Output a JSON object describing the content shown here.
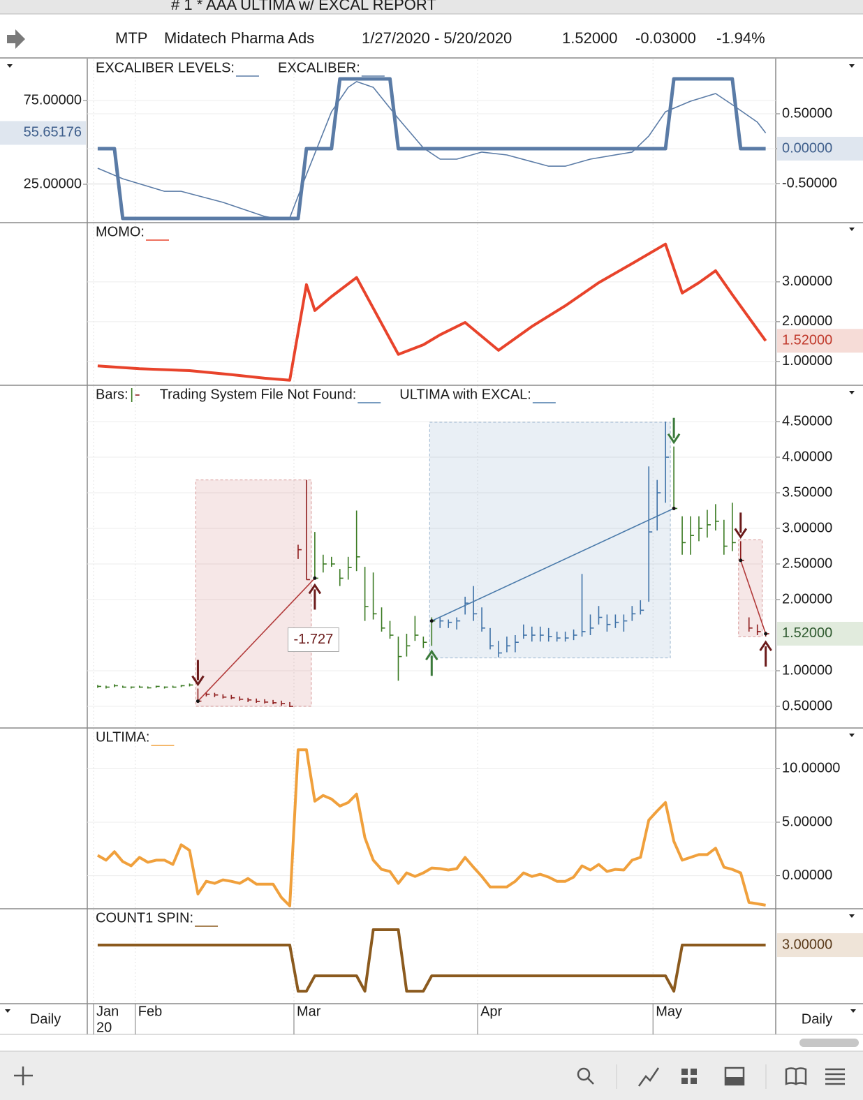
{
  "window_title": "# 1 * AAA ULTIMA w/ EXCAL REPORT",
  "header": {
    "symbol": "MTP",
    "name": "Midatech Pharma Ads",
    "range": "1/27/2020 - 5/20/2020",
    "last": "1.52000",
    "change": "-0.03000",
    "change_pct": "-1.94%"
  },
  "periodicity_left": "Daily",
  "periodicity_right": "Daily",
  "x_axis": {
    "xlim": [
      -1.25,
      81.2
    ],
    "year": "20",
    "xticks": [
      {
        "value": -0.5,
        "label": "Jan"
      },
      {
        "value": 4.5,
        "label": "Feb"
      },
      {
        "value": 23.5,
        "label": "Mar"
      },
      {
        "value": 45.5,
        "label": "Apr"
      },
      {
        "value": 66.5,
        "label": "May"
      }
    ]
  },
  "chart_data": [
    {
      "type": "line",
      "grid": true,
      "ylim": [
        2.5,
        99.6
      ],
      "yticks": [
        {
          "value": 75,
          "label": "75.00000"
        },
        {
          "value": 25,
          "label": "25.00000"
        }
      ],
      "y2lim": [
        -1.05,
        1.28
      ],
      "y2ticks": [
        {
          "value": 0.5,
          "label": "0.50000"
        },
        {
          "value": 0,
          "label": "0.00000"
        },
        {
          "value": -0.5,
          "label": "-0.50000"
        }
      ],
      "series": [
        {
          "name": "EXCALIBER LEVELS:",
          "color": "#5a7ba6",
          "width": 1.6,
          "axis": "y",
          "x": [
            0,
            3,
            8,
            10,
            15,
            20,
            21,
            23,
            25,
            28,
            30,
            31,
            33,
            36,
            39,
            41,
            43,
            46,
            49,
            54,
            56,
            59,
            64,
            66,
            68,
            71,
            74,
            76,
            79,
            80
          ],
          "values": [
            34.6,
            28.3,
            20.8,
            20.8,
            14.2,
            5.8,
            5,
            5,
            30.8,
            68.3,
            82.9,
            86.3,
            82.9,
            64.2,
            46.7,
            40,
            40,
            44.2,
            42.5,
            35.8,
            35.8,
            40,
            44.2,
            53.8,
            68.3,
            74.6,
            79.2,
            72.5,
            62.1,
            55.65176
          ]
        },
        {
          "name": "EXCALIBER:",
          "color": "#5a7ba6",
          "width": 5,
          "axis": "y2",
          "x": [
            0,
            2,
            3,
            24,
            25,
            28,
            29,
            35,
            36,
            68,
            69,
            76,
            77,
            80
          ],
          "values": [
            0,
            0,
            -1,
            -1,
            0,
            0,
            1,
            1,
            0,
            0,
            1,
            1,
            0,
            0
          ]
        }
      ],
      "last_labels": [
        {
          "axis": "y",
          "value": 55.65176,
          "label": "55.65176",
          "color": "#dfe6ef",
          "text_color": "#3f5f8c"
        },
        {
          "axis": "y2",
          "value": 0,
          "label": "0.00000",
          "color": "#dfe6ef",
          "text_color": "#3f5f8c"
        }
      ]
    },
    {
      "type": "line",
      "grid": true,
      "y2lim": [
        0.42,
        4.47
      ],
      "y2ticks": [
        {
          "value": 3,
          "label": "3.00000"
        },
        {
          "value": 2,
          "label": "2.00000"
        },
        {
          "value": 1,
          "label": "1.00000"
        }
      ],
      "series": [
        {
          "name": "MOMO:",
          "color": "#e8432b",
          "width": 4,
          "axis": "y2",
          "x": [
            0,
            5,
            11,
            16,
            20,
            23,
            25,
            26,
            28,
            31,
            36,
            39,
            41,
            44,
            48,
            52,
            56,
            60,
            64,
            68,
            70,
            72,
            74,
            76,
            80
          ],
          "values": [
            0.89,
            0.82,
            0.77,
            0.67,
            0.58,
            0.53,
            2.93,
            2.28,
            2.63,
            3.11,
            1.18,
            1.42,
            1.67,
            1.98,
            1.28,
            1.88,
            2.4,
            2.98,
            3.46,
            3.95,
            2.72,
            2.98,
            3.28,
            2.68,
            1.52
          ]
        }
      ],
      "last_labels": [
        {
          "axis": "y2",
          "value": 1.52,
          "label": "1.52000",
          "color": "#f6dcd7",
          "text_color": "#c0392b"
        }
      ]
    },
    {
      "type": "ohlc",
      "grid": true,
      "y2lim": [
        0.206,
        5.0
      ],
      "y2ticks": [
        {
          "value": 4.5,
          "label": "4.50000"
        },
        {
          "value": 4,
          "label": "4.00000"
        },
        {
          "value": 3.5,
          "label": "3.50000"
        },
        {
          "value": 3,
          "label": "3.00000"
        },
        {
          "value": 2.5,
          "label": "2.50000"
        },
        {
          "value": 2,
          "label": "2.00000"
        },
        {
          "value": 1,
          "label": "1.00000"
        },
        {
          "value": 0.5,
          "label": "0.50000"
        }
      ],
      "legend": [
        {
          "name": "Bars:"
        },
        {
          "name": "Trading System File Not Found:",
          "color": "#4a7aaa"
        },
        {
          "name": "ULTIMA with EXCAL:",
          "color": "#4a7aaa"
        }
      ],
      "series": [
        {
          "color": "#3a7a22",
          "x": [
            0,
            1,
            2,
            3,
            4,
            5,
            6,
            7,
            8,
            9,
            10,
            11
          ],
          "high": [
            0.8,
            0.79,
            0.81,
            0.79,
            0.78,
            0.79,
            0.78,
            0.79,
            0.78,
            0.79,
            0.8,
            0.82
          ],
          "low": [
            0.76,
            0.75,
            0.77,
            0.76,
            0.75,
            0.76,
            0.75,
            0.76,
            0.75,
            0.76,
            0.77,
            0.78
          ],
          "close": [
            0.78,
            0.77,
            0.79,
            0.77,
            0.77,
            0.77,
            0.76,
            0.78,
            0.77,
            0.77,
            0.79,
            0.8
          ]
        },
        {
          "color": "#8e1c1c",
          "x": [
            12,
            13,
            14,
            15,
            16,
            17,
            18,
            19,
            20,
            21,
            22,
            23,
            24,
            25
          ],
          "high": [
            0.75,
            0.7,
            0.69,
            0.67,
            0.66,
            0.64,
            0.62,
            0.61,
            0.6,
            0.59,
            0.58,
            0.56,
            2.77,
            3.68
          ],
          "low": [
            0.57,
            0.64,
            0.63,
            0.61,
            0.6,
            0.58,
            0.56,
            0.55,
            0.54,
            0.53,
            0.51,
            0.49,
            2.57,
            2.28
          ],
          "close": [
            0.573,
            0.67,
            0.66,
            0.63,
            0.62,
            0.6,
            0.59,
            0.57,
            0.56,
            0.55,
            0.54,
            0.5,
            2.7,
            2.28
          ]
        },
        {
          "color": "#3a7a22",
          "x": [
            26,
            27,
            28,
            29,
            30,
            31,
            32,
            33,
            34,
            35,
            36,
            37,
            38,
            39,
            40
          ],
          "high": [
            2.95,
            2.63,
            2.6,
            2.43,
            2.6,
            3.25,
            2.46,
            2.38,
            1.89,
            1.7,
            1.48,
            1.52,
            1.77,
            1.48,
            1.75
          ],
          "low": [
            2.28,
            2.38,
            2.46,
            2.19,
            2.28,
            2.4,
            1.7,
            1.72,
            1.55,
            1.45,
            0.86,
            1.2,
            1.42,
            1.32,
            1.35
          ],
          "close": [
            2.3,
            2.5,
            2.5,
            2.3,
            2.45,
            2.6,
            1.9,
            1.8,
            1.6,
            1.5,
            1.2,
            1.35,
            1.5,
            1.4,
            1.7
          ]
        },
        {
          "color": "#3f72a8",
          "x": [
            41,
            42,
            43,
            44,
            45,
            46,
            47,
            48,
            49,
            50,
            51,
            52,
            53,
            54,
            55,
            56,
            57,
            58,
            59,
            60,
            61,
            62,
            63,
            64,
            65,
            66,
            67,
            68
          ],
          "high": [
            1.75,
            1.72,
            1.75,
            2.04,
            2.19,
            1.89,
            1.6,
            1.42,
            1.48,
            1.5,
            1.65,
            1.62,
            1.62,
            1.6,
            1.55,
            1.55,
            1.58,
            2.36,
            1.79,
            1.91,
            1.79,
            1.79,
            1.79,
            1.91,
            1.99,
            3.87,
            3.68,
            4.5
          ],
          "low": [
            1.6,
            1.6,
            1.58,
            1.79,
            1.7,
            1.55,
            1.3,
            1.19,
            1.26,
            1.26,
            1.45,
            1.41,
            1.41,
            1.41,
            1.41,
            1.41,
            1.43,
            1.48,
            1.5,
            1.65,
            1.55,
            1.6,
            1.55,
            1.7,
            1.79,
            1.97,
            2.97,
            3.36
          ],
          "close": [
            1.7,
            1.68,
            1.7,
            1.95,
            1.8,
            1.6,
            1.35,
            1.25,
            1.35,
            1.4,
            1.5,
            1.5,
            1.5,
            1.48,
            1.46,
            1.46,
            1.5,
            1.55,
            1.6,
            1.75,
            1.65,
            1.68,
            1.7,
            1.8,
            1.85,
            2.95,
            3.5,
            4.0
          ]
        },
        {
          "color": "#3a7a22",
          "x": [
            69,
            70,
            71,
            72,
            73,
            74,
            75,
            76
          ],
          "high": [
            4.15,
            3.17,
            3.17,
            3.17,
            3.26,
            3.34,
            3.12,
            3.36
          ],
          "low": [
            3.26,
            2.63,
            2.63,
            2.82,
            2.87,
            2.97,
            2.63,
            2.68
          ],
          "close": [
            3.28,
            2.8,
            2.9,
            3.0,
            3.05,
            3.1,
            2.75,
            2.8
          ]
        },
        {
          "color": "#8e1c1c",
          "x": [
            77,
            78,
            79,
            80
          ],
          "high": [
            2.82,
            1.75,
            1.65,
            1.55
          ],
          "low": [
            2.53,
            1.55,
            1.5,
            1.48
          ],
          "close": [
            2.55,
            1.6,
            1.55,
            1.52
          ]
        }
      ],
      "trades": [
        {
          "side": "short",
          "entry_x": 12,
          "entry": 0.573,
          "exit_x": 26,
          "exit": 2.3,
          "box": [
            0.5,
            3.68
          ],
          "color": "#b23a3a",
          "arrow_color": "#6b1a1a",
          "result": -1.727
        },
        {
          "side": "long",
          "entry_x": 40,
          "entry": 1.7,
          "exit_x": 69,
          "exit": 3.28,
          "box": [
            1.18,
            4.49
          ],
          "color": "#4a7aaa",
          "arrow_color": "#3a7a3a"
        },
        {
          "side": "short",
          "entry_x": 77,
          "entry": 2.55,
          "exit_x": 80,
          "exit": 1.52,
          "box": [
            1.48,
            2.84
          ],
          "color": "#b23a3a",
          "arrow_color": "#6b1a1a"
        }
      ],
      "last_labels": [
        {
          "axis": "y2",
          "value": 1.52,
          "label": "1.52000",
          "color": "#e1ebdd",
          "text_color": "#2f5a2f"
        }
      ]
    },
    {
      "type": "line",
      "grid": true,
      "y2lim": [
        -3.03,
        13.75
      ],
      "y2ticks": [
        {
          "value": 10,
          "label": "10.00000"
        },
        {
          "value": 5,
          "label": "5.00000"
        },
        {
          "value": 0,
          "label": "0.00000"
        }
      ],
      "series": [
        {
          "name": "ULTIMA:",
          "color": "#f0a03c",
          "width": 4,
          "axis": "y2",
          "values": [
            1.9,
            1.45,
            2.24,
            1.32,
            0.92,
            1.71,
            1.25,
            1.45,
            1.45,
            1.05,
            2.89,
            2.37,
            -1.71,
            -0.53,
            -0.72,
            -0.39,
            -0.53,
            -0.72,
            -0.26,
            -0.79,
            -0.79,
            -0.79,
            -2.04,
            -2.83,
            11.78,
            11.78,
            6.97,
            7.5,
            7.17,
            6.51,
            6.84,
            7.63,
            3.55,
            1.45,
            0.59,
            0.39,
            -0.72,
            0.26,
            -0.07,
            0.26,
            0.72,
            0.66,
            0.53,
            0.66,
            1.71,
            0.79,
            -0.07,
            -1.05,
            -1.05,
            -1.05,
            -0.53,
            0.26,
            -0.07,
            0.13,
            -0.13,
            -0.53,
            -0.53,
            -0.13,
            0.92,
            0.53,
            1.05,
            0.39,
            0.59,
            0.53,
            1.45,
            1.71,
            5.2,
            6.05,
            6.84,
            3.22,
            1.45,
            1.71,
            1.97,
            1.97,
            2.57,
            0.79,
            0.59,
            0.26,
            -2.5,
            -2.63,
            -2.76
          ]
        }
      ]
    },
    {
      "type": "line",
      "grid": true,
      "y2lim": [
        -0.77,
        5.32
      ],
      "series": [
        {
          "name": "COUNT1 SPIN:",
          "color": "#8b5a1e",
          "width": 4,
          "axis": "y2",
          "x": [
            0,
            23,
            24,
            25,
            26,
            31,
            32,
            33,
            36,
            37,
            39,
            40,
            68,
            69,
            70,
            80
          ],
          "values": [
            3,
            3,
            0,
            0,
            1,
            1,
            0,
            4,
            4,
            0,
            0,
            1,
            1,
            0,
            3,
            3
          ]
        }
      ],
      "last_labels": [
        {
          "axis": "y2",
          "value": 3,
          "label": "3.00000",
          "color": "#efe4d8",
          "text_color": "#5a3a1a"
        }
      ]
    }
  ]
}
